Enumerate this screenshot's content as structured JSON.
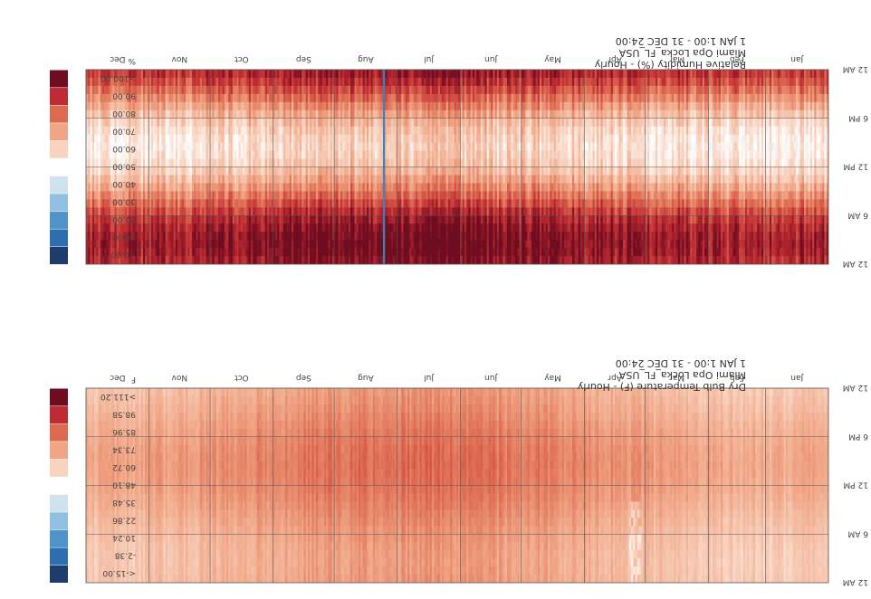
{
  "chart_data": [
    {
      "type": "heatmap",
      "title": "Dry Bulb Temperature (F) - Hourly",
      "location": "Miami Opa Locka_FL_USA",
      "period": "1 JAN 1:00 - 31 DEC 24:00",
      "x_tick_labels": [
        "Jan",
        "Feb",
        "Mar",
        "Apr",
        "May",
        "Jun",
        "Jul",
        "Aug",
        "Sep",
        "Oct",
        "Nov",
        "Dec"
      ],
      "y_tick_labels": [
        "12 AM",
        "6 AM",
        "12 PM",
        "6 PM",
        "12 AM"
      ],
      "unit": "F",
      "legend": {
        "labels": [
          "<-15.00",
          "-2.38",
          "10.24",
          "22.86",
          "35.48",
          "48.10",
          "60.72",
          "73.34",
          "85.96",
          "98.58",
          ">111.20"
        ],
        "colors": [
          "#1c3d6e",
          "#2c6eb0",
          "#4f93c9",
          "#8fc0df",
          "#cfe3ef",
          "#ffffff",
          "#f8d3c0",
          "#f0a585",
          "#dd6a50",
          "#bf2b32",
          "#6e0c20"
        ]
      },
      "value_range": [
        -15,
        111.2
      ],
      "estimated_range_shown": [
        55,
        95
      ],
      "seasonal_peak_month": "Aug"
    },
    {
      "type": "heatmap",
      "title": "Relative Humidity (%) - Hourly",
      "location": "Miami Opa Locka_FL_USA",
      "period": "1 JAN 1:00 - 31 DEC 24:00",
      "x_tick_labels": [
        "Jan",
        "Feb",
        "Mar",
        "Apr",
        "May",
        "Jun",
        "Jul",
        "Aug",
        "Sep",
        "Oct",
        "Nov",
        "Dec"
      ],
      "y_tick_labels": [
        "12 AM",
        "6 AM",
        "12 PM",
        "6 PM",
        "12 AM"
      ],
      "unit": "%",
      "legend": {
        "labels": [
          "<0.00",
          "10.00",
          "20.00",
          "30.00",
          "40.00",
          "50.00",
          "60.00",
          "70.00",
          "80.00",
          "90.00",
          ">100.00"
        ],
        "colors": [
          "#1c3d6e",
          "#2c6eb0",
          "#4f93c9",
          "#8fc0df",
          "#cfe3ef",
          "#ffffff",
          "#f8d3c0",
          "#f0a585",
          "#dd6a50",
          "#bf2b32",
          "#6e0c20"
        ]
      },
      "value_range": [
        0,
        100
      ],
      "estimated_range_shown": [
        40,
        100
      ],
      "night_typical": 90,
      "midday_typical": 60
    }
  ]
}
